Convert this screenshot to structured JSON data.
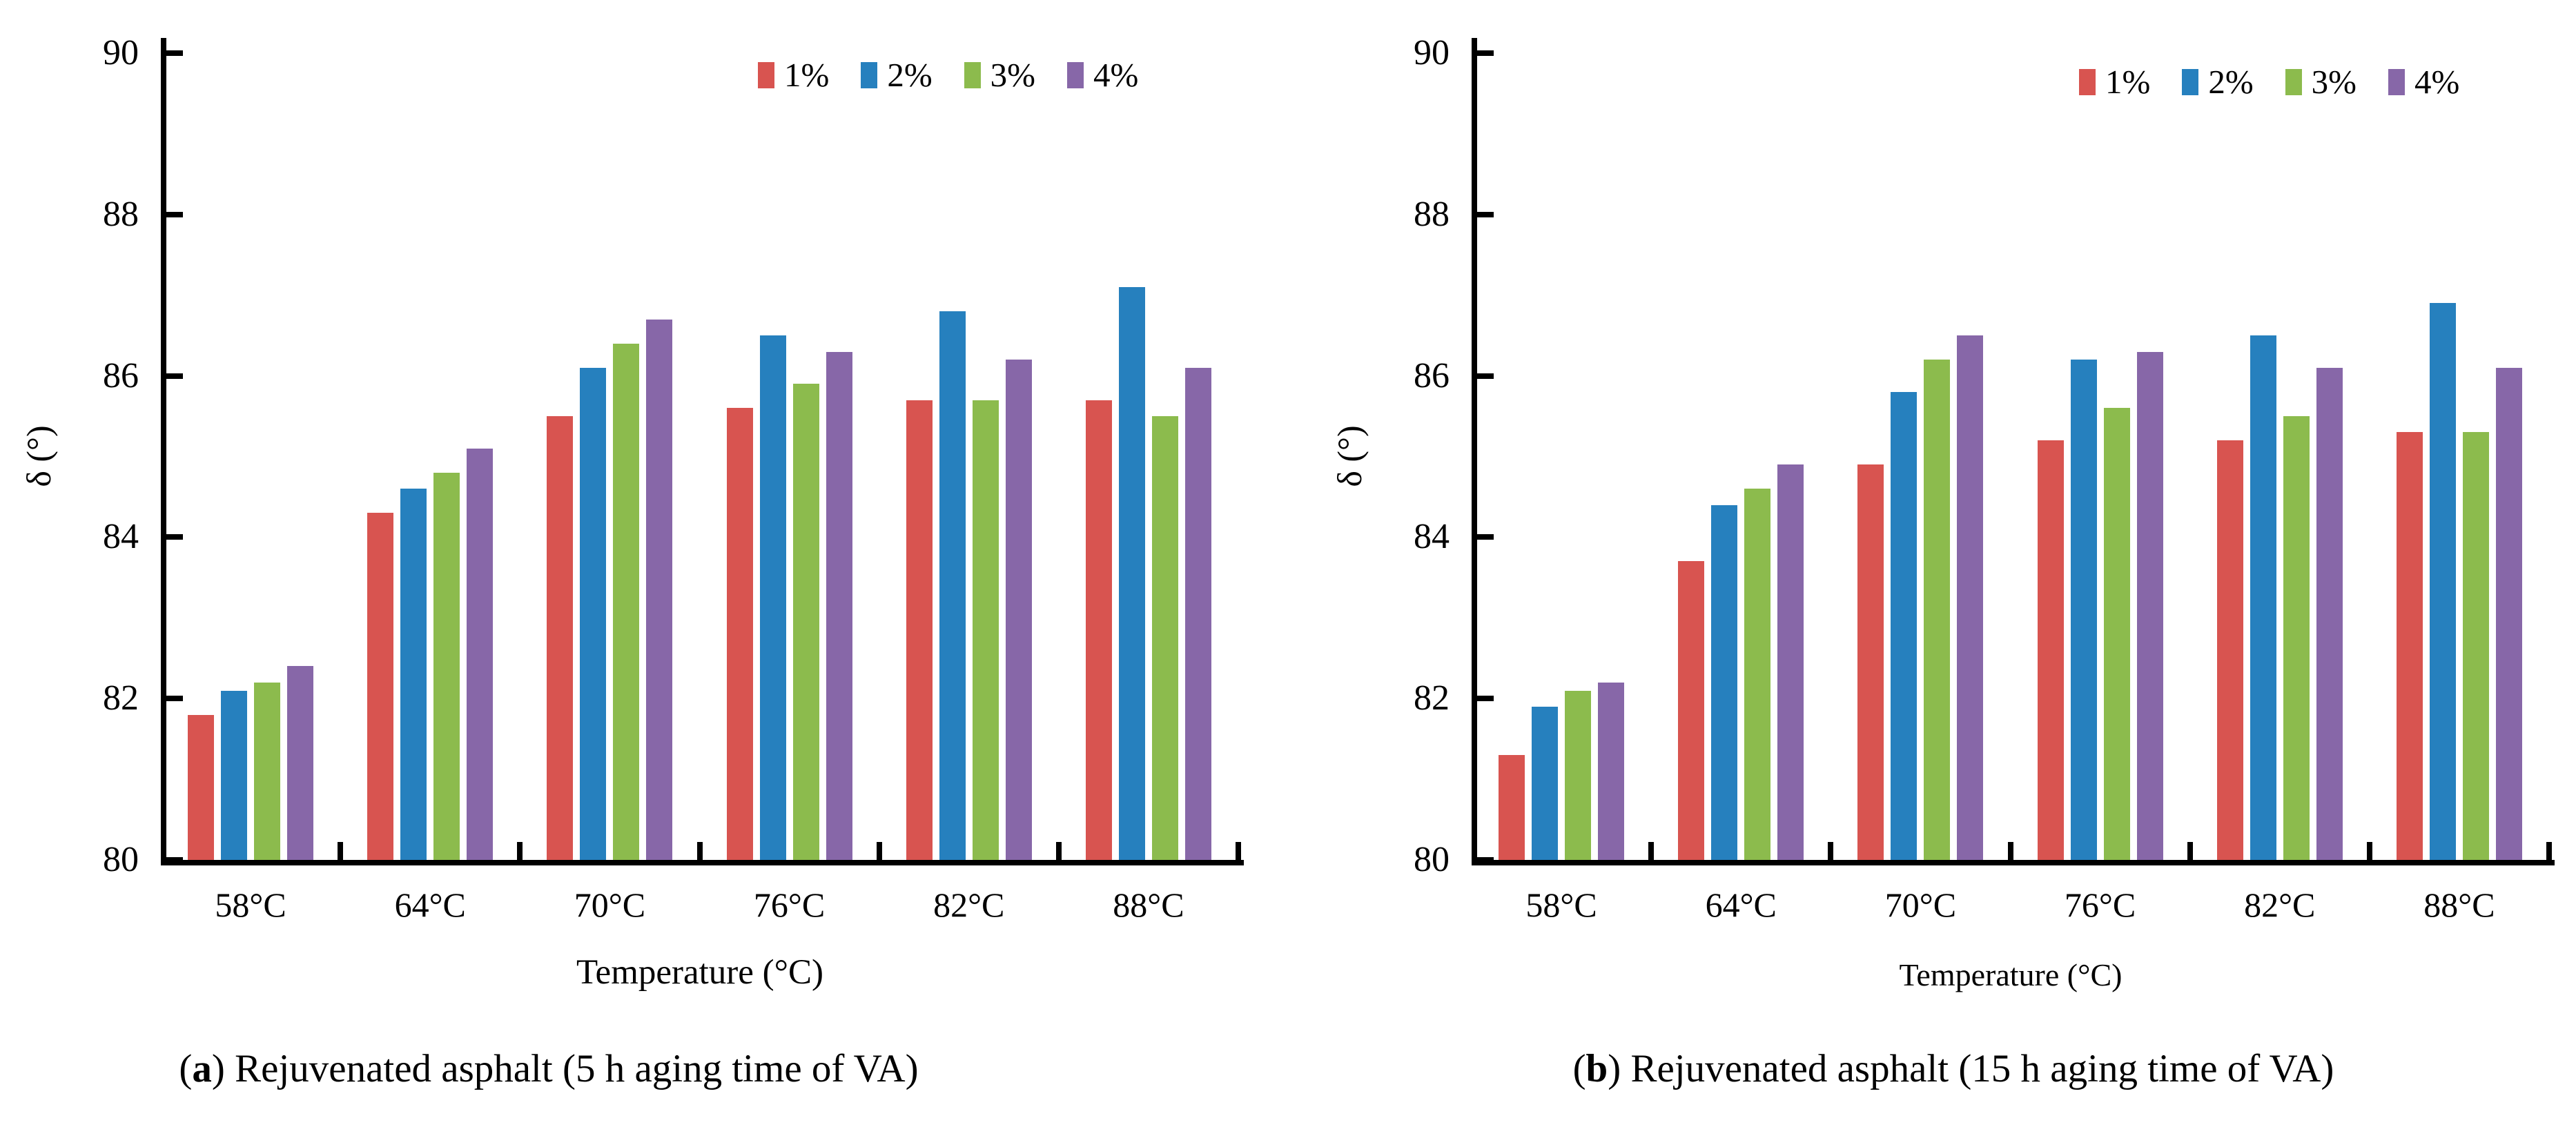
{
  "figure": {
    "series_labels": [
      "1%",
      "2%",
      "3%",
      "4%"
    ],
    "series_colors": [
      "#D85450",
      "#2680BE",
      "#8CBB4D",
      "#8767A8"
    ],
    "axis_color": "#000000",
    "background": "#ffffff"
  },
  "chart_data": [
    {
      "type": "bar",
      "panel": "a",
      "caption": {
        "pre": "(",
        "bold": "a",
        "post": ") Rejuvenated asphalt (5 h aging time of VA)"
      },
      "xlabel": "Temperature (°C)",
      "ylabel": "δ (°)",
      "categories": [
        "58°C",
        "64°C",
        "70°C",
        "76°C",
        "82°C",
        "88°C"
      ],
      "y_ticks": [
        80,
        82,
        84,
        86,
        88,
        90
      ],
      "ylim": [
        80,
        90
      ],
      "legend_position": "top-right",
      "grid": false,
      "series": [
        {
          "name": "1%",
          "values": [
            81.8,
            84.3,
            85.5,
            85.6,
            85.7,
            85.7
          ]
        },
        {
          "name": "2%",
          "values": [
            82.1,
            84.6,
            86.1,
            86.5,
            86.8,
            87.1
          ]
        },
        {
          "name": "3%",
          "values": [
            82.2,
            84.8,
            86.4,
            85.9,
            85.7,
            85.5
          ]
        },
        {
          "name": "4%",
          "values": [
            82.4,
            85.1,
            86.7,
            86.3,
            86.2,
            86.1
          ]
        }
      ]
    },
    {
      "type": "bar",
      "panel": "b",
      "caption": {
        "pre": "(",
        "bold": "b",
        "post": ") Rejuvenated asphalt (15 h aging time of VA)"
      },
      "xlabel": "Temperature (°C)",
      "ylabel": "δ (°)",
      "categories": [
        "58°C",
        "64°C",
        "70°C",
        "76°C",
        "82°C",
        "88°C"
      ],
      "y_ticks": [
        80,
        82,
        84,
        86,
        88,
        90
      ],
      "ylim": [
        80,
        90
      ],
      "legend_position": "top-right",
      "grid": false,
      "series": [
        {
          "name": "1%",
          "values": [
            81.3,
            83.7,
            84.9,
            85.2,
            85.2,
            85.3
          ]
        },
        {
          "name": "2%",
          "values": [
            81.9,
            84.4,
            85.8,
            86.2,
            86.5,
            86.9
          ]
        },
        {
          "name": "3%",
          "values": [
            82.1,
            84.6,
            86.2,
            85.6,
            85.5,
            85.3
          ]
        },
        {
          "name": "4%",
          "values": [
            82.2,
            84.9,
            86.5,
            86.3,
            86.1,
            86.1
          ]
        }
      ]
    }
  ]
}
